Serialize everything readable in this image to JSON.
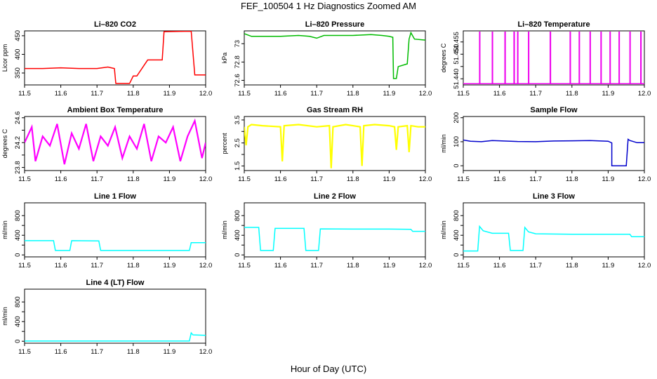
{
  "figure": {
    "title": "FEF_100504  1 Hz Diagnostics Zoomed AM",
    "xlabel": "Hour of Day (UTC)"
  },
  "chart_data": [
    {
      "id": "co2",
      "type": "line",
      "title": "Li–820 CO2",
      "ylabel": "Licor ppm",
      "color": "#ff0000",
      "xlim": [
        11.5,
        12.0
      ],
      "ylim": [
        318,
        463
      ],
      "yticks": [
        350,
        400,
        450
      ],
      "xticks": [
        11.5,
        11.6,
        11.7,
        11.8,
        11.9,
        12.0
      ],
      "x": [
        11.5,
        11.55,
        11.6,
        11.65,
        11.7,
        11.73,
        11.748,
        11.752,
        11.79,
        11.8,
        11.81,
        11.84,
        11.85,
        11.88,
        11.885,
        11.96,
        11.97,
        12.0
      ],
      "y": [
        362,
        362,
        364,
        362,
        362,
        366,
        362,
        322,
        322,
        342,
        342,
        385,
        385,
        385,
        461,
        462,
        345,
        345
      ]
    },
    {
      "id": "pressure",
      "type": "line",
      "title": "Li–820 Pressure",
      "ylabel": "kPa",
      "color": "#00bb00",
      "xlim": [
        11.5,
        12.0
      ],
      "ylim": [
        72.55,
        73.14
      ],
      "yticks": [
        72.6,
        72.8,
        73.0
      ],
      "xticks": [
        11.5,
        11.6,
        11.7,
        11.8,
        11.9,
        12.0
      ],
      "x": [
        11.5,
        11.52,
        11.55,
        11.6,
        11.65,
        11.68,
        11.7,
        11.72,
        11.75,
        11.8,
        11.85,
        11.88,
        11.9,
        11.91,
        11.912,
        11.92,
        11.925,
        11.95,
        11.955,
        11.96,
        11.97,
        12.0
      ],
      "y": [
        73.11,
        73.08,
        73.08,
        73.08,
        73.09,
        73.08,
        73.06,
        73.09,
        73.09,
        73.09,
        73.1,
        73.09,
        73.08,
        73.07,
        72.62,
        72.62,
        72.75,
        72.78,
        73.05,
        73.12,
        73.05,
        73.04
      ]
    },
    {
      "id": "temperature",
      "type": "line",
      "title": "Li–820 Temperature",
      "ylabel": "degrees C",
      "color": "#ee00ee",
      "xlim": [
        11.5,
        12.0
      ],
      "ylim": [
        51.4375,
        51.4595
      ],
      "yticks": [
        51.44,
        51.445,
        51.45,
        51.455
      ],
      "ytick_labels": [
        "51.440",
        "",
        "51.450",
        "51.455"
      ],
      "xticks": [
        11.5,
        11.6,
        11.7,
        11.8,
        11.9,
        12.0
      ],
      "x": [
        11.5,
        11.545,
        11.545,
        11.546,
        11.546,
        11.58,
        11.58,
        11.581,
        11.581,
        11.615,
        11.615,
        11.616,
        11.616,
        11.64,
        11.64,
        11.641,
        11.641,
        11.65,
        11.65,
        11.651,
        11.651,
        11.68,
        11.68,
        11.681,
        11.681,
        11.74,
        11.74,
        11.741,
        11.741,
        11.795,
        11.795,
        11.796,
        11.796,
        11.82,
        11.82,
        11.821,
        11.821,
        11.85,
        11.85,
        11.851,
        11.851,
        11.88,
        11.88,
        11.881,
        11.881,
        11.905,
        11.905,
        11.906,
        11.906,
        11.93,
        11.93,
        11.931,
        11.931,
        11.96,
        11.96,
        11.961,
        11.961,
        11.99,
        11.99,
        11.991,
        11.991,
        12.0
      ],
      "y": [
        51.438,
        51.438,
        51.459,
        51.459,
        51.438,
        51.438,
        51.459,
        51.459,
        51.438,
        51.438,
        51.459,
        51.459,
        51.438,
        51.438,
        51.459,
        51.459,
        51.438,
        51.438,
        51.459,
        51.459,
        51.438,
        51.438,
        51.459,
        51.459,
        51.438,
        51.438,
        51.459,
        51.459,
        51.438,
        51.438,
        51.459,
        51.459,
        51.438,
        51.438,
        51.459,
        51.459,
        51.438,
        51.438,
        51.459,
        51.459,
        51.438,
        51.438,
        51.459,
        51.459,
        51.438,
        51.438,
        51.459,
        51.459,
        51.438,
        51.438,
        51.459,
        51.459,
        51.438,
        51.438,
        51.459,
        51.459,
        51.438,
        51.438,
        51.459,
        51.459,
        51.438,
        51.438
      ]
    },
    {
      "id": "ambient",
      "type": "line",
      "title": "Ambient Box Temperature",
      "ylabel": "degrees C",
      "color": "#ff00ff",
      "xlim": [
        11.5,
        12.0
      ],
      "ylim": [
        23.75,
        24.62
      ],
      "yticks": [
        23.8,
        24.0,
        24.2,
        24.4,
        24.6
      ],
      "ytick_labels": [
        "23.8",
        "",
        "24.2",
        "",
        "24.6"
      ],
      "xticks": [
        11.5,
        11.6,
        11.7,
        11.8,
        11.9,
        12.0
      ],
      "x": [
        11.5,
        11.52,
        11.53,
        11.55,
        11.57,
        11.59,
        11.61,
        11.63,
        11.65,
        11.67,
        11.69,
        11.71,
        11.73,
        11.75,
        11.77,
        11.79,
        11.81,
        11.83,
        11.85,
        11.87,
        11.89,
        11.91,
        11.93,
        11.95,
        11.97,
        11.99,
        12.0
      ],
      "y": [
        24.2,
        24.45,
        23.9,
        24.3,
        24.15,
        24.5,
        23.85,
        24.35,
        24.1,
        24.5,
        23.9,
        24.3,
        24.15,
        24.45,
        23.95,
        24.3,
        24.1,
        24.5,
        23.9,
        24.3,
        24.2,
        24.45,
        23.9,
        24.3,
        24.55,
        23.95,
        24.2
      ]
    },
    {
      "id": "rh",
      "type": "line",
      "title": "Gas Stream RH",
      "ylabel": "percent",
      "color": "#ffff00",
      "xlim": [
        11.5,
        12.0
      ],
      "ylim": [
        1.3,
        3.65
      ],
      "yticks": [
        1.5,
        2.0,
        2.5,
        3.0,
        3.5
      ],
      "ytick_labels": [
        "1.5",
        "",
        "2.5",
        "",
        "3.5"
      ],
      "xticks": [
        11.5,
        11.6,
        11.7,
        11.8,
        11.9,
        12.0
      ],
      "x": [
        11.5,
        11.505,
        11.51,
        11.52,
        11.55,
        11.6,
        11.605,
        11.61,
        11.65,
        11.7,
        11.735,
        11.74,
        11.745,
        11.78,
        11.8,
        11.82,
        11.825,
        11.83,
        11.86,
        11.9,
        11.915,
        11.92,
        11.925,
        11.95,
        11.955,
        11.96,
        11.98,
        12.0
      ],
      "y": [
        3.2,
        2.4,
        3.2,
        3.3,
        3.25,
        3.2,
        1.7,
        3.25,
        3.3,
        3.2,
        3.25,
        1.4,
        3.2,
        3.3,
        3.25,
        3.2,
        1.5,
        3.25,
        3.3,
        3.25,
        3.2,
        2.2,
        3.2,
        3.25,
        2.1,
        3.25,
        3.2,
        3.2
      ]
    },
    {
      "id": "sample",
      "type": "line",
      "title": "Sample Flow",
      "ylabel": "ml/min",
      "color": "#0000cc",
      "xlim": [
        11.5,
        12.0
      ],
      "ylim": [
        -20,
        205
      ],
      "yticks": [
        0,
        100,
        200
      ],
      "xticks": [
        11.5,
        11.6,
        11.7,
        11.8,
        11.9,
        12.0
      ],
      "x": [
        11.5,
        11.52,
        11.55,
        11.58,
        11.6,
        11.65,
        11.7,
        11.75,
        11.8,
        11.85,
        11.9,
        11.91,
        11.91,
        11.95,
        11.955,
        11.96,
        11.98,
        12.0
      ],
      "y": [
        107,
        102,
        100,
        105,
        104,
        101,
        100,
        103,
        104,
        105,
        102,
        95,
        0,
        0,
        110,
        105,
        96,
        96
      ]
    },
    {
      "id": "line1",
      "type": "line",
      "title": "Line 1 Flow",
      "ylabel": "ml/min",
      "color": "#00ffff",
      "xlim": [
        11.5,
        12.0
      ],
      "ylim": [
        -40,
        1060
      ],
      "yticks": [
        0,
        200,
        400,
        600,
        800
      ],
      "ytick_labels": [
        "0",
        "",
        "400",
        "",
        "800"
      ],
      "xticks": [
        11.5,
        11.6,
        11.7,
        11.8,
        11.9,
        12.0
      ],
      "x": [
        11.5,
        11.58,
        11.585,
        11.625,
        11.63,
        11.705,
        11.71,
        11.955,
        11.96,
        12.0
      ],
      "y": [
        290,
        290,
        90,
        90,
        290,
        285,
        90,
        90,
        250,
        250
      ]
    },
    {
      "id": "line2",
      "type": "line",
      "title": "Line 2 Flow",
      "ylabel": "ml/min",
      "color": "#00ffff",
      "xlim": [
        11.5,
        12.0
      ],
      "ylim": [
        -40,
        1060
      ],
      "yticks": [
        0,
        200,
        400,
        600,
        800
      ],
      "ytick_labels": [
        "0",
        "",
        "400",
        "",
        "800"
      ],
      "xticks": [
        11.5,
        11.6,
        11.7,
        11.8,
        11.9,
        12.0
      ],
      "x": [
        11.5,
        11.54,
        11.545,
        11.58,
        11.585,
        11.665,
        11.67,
        11.705,
        11.71,
        11.8,
        11.9,
        11.96,
        11.965,
        12.0
      ],
      "y": [
        560,
        560,
        90,
        90,
        540,
        540,
        90,
        90,
        530,
        525,
        525,
        520,
        480,
        480
      ]
    },
    {
      "id": "line3",
      "type": "line",
      "title": "Line 3 Flow",
      "ylabel": "ml/min",
      "color": "#00ffff",
      "xlim": [
        11.5,
        12.0
      ],
      "ylim": [
        -40,
        1060
      ],
      "yticks": [
        0,
        200,
        400,
        600,
        800
      ],
      "ytick_labels": [
        "0",
        "",
        "400",
        "",
        "800"
      ],
      "xticks": [
        11.5,
        11.6,
        11.7,
        11.8,
        11.9,
        12.0
      ],
      "x": [
        11.5,
        11.54,
        11.545,
        11.555,
        11.58,
        11.625,
        11.63,
        11.665,
        11.67,
        11.68,
        11.7,
        11.8,
        11.9,
        11.96,
        11.965,
        12.0
      ],
      "y": [
        80,
        80,
        580,
        490,
        440,
        440,
        90,
        90,
        560,
        470,
        430,
        420,
        420,
        420,
        370,
        370
      ]
    },
    {
      "id": "line4",
      "type": "line",
      "title": "Line 4 (LT) Flow",
      "ylabel": "ml/min",
      "color": "#00ffff",
      "xlim": [
        11.5,
        12.0
      ],
      "ylim": [
        -40,
        1060
      ],
      "yticks": [
        0,
        200,
        400,
        600,
        800
      ],
      "ytick_labels": [
        "0",
        "",
        "400",
        "",
        "800"
      ],
      "xticks": [
        11.5,
        11.6,
        11.7,
        11.8,
        11.9,
        12.0
      ],
      "x": [
        11.5,
        11.6,
        11.7,
        11.8,
        11.9,
        11.955,
        11.96,
        11.965,
        12.0
      ],
      "y": [
        5,
        5,
        5,
        5,
        5,
        5,
        170,
        130,
        120
      ]
    }
  ]
}
